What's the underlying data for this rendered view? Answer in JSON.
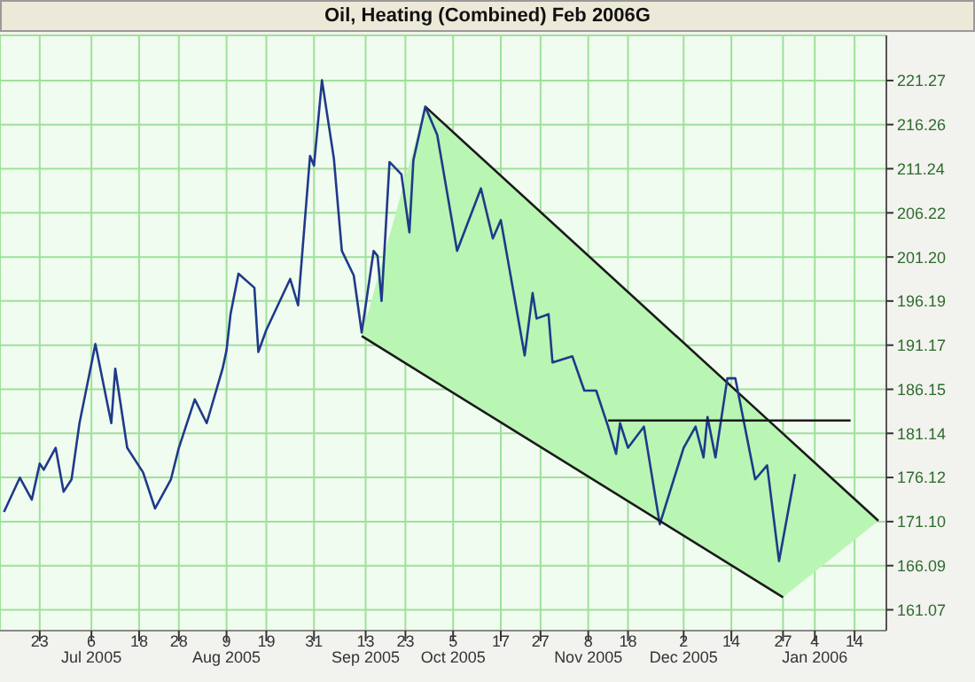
{
  "chart_data": {
    "type": "line",
    "title": "Oil, Heating (Combined) Feb 2006G",
    "xlim": [
      "2005-06-13",
      "2006-01-22"
    ],
    "xticks": [
      {
        "value": "2005-06-23",
        "label": "23"
      },
      {
        "value": "2005-07-06",
        "label": "6\nJul 2005"
      },
      {
        "value": "2005-07-18",
        "label": "18"
      },
      {
        "value": "2005-07-28",
        "label": "28"
      },
      {
        "value": "2005-08-09",
        "label": "9\nAug 2005"
      },
      {
        "value": "2005-08-19",
        "label": "19"
      },
      {
        "value": "2005-08-31",
        "label": "31"
      },
      {
        "value": "2005-09-13",
        "label": "13\nSep 2005"
      },
      {
        "value": "2005-09-23",
        "label": "23"
      },
      {
        "value": "2005-10-05",
        "label": "5\nOct 2005"
      },
      {
        "value": "2005-10-17",
        "label": "17"
      },
      {
        "value": "2005-10-27",
        "label": "27"
      },
      {
        "value": "2005-11-08",
        "label": "8\nNov 2005"
      },
      {
        "value": "2005-11-18",
        "label": "18"
      },
      {
        "value": "2005-12-02",
        "label": "2\nDec 2005"
      },
      {
        "value": "2005-12-14",
        "label": "14"
      },
      {
        "value": "2005-12-27",
        "label": "27"
      },
      {
        "value": "2006-01-04",
        "label": "4\nJan 2006"
      },
      {
        "value": "2006-01-14",
        "label": "14"
      }
    ],
    "ylim": [
      158.7,
      226.4
    ],
    "yticks": [
      161.07,
      166.09,
      {
        "value": 171.1,
        "label": "171.10"
      },
      176.12,
      181.14,
      186.15,
      191.17,
      196.19,
      {
        "value": 201.2,
        "label": "201.20"
      },
      206.22,
      211.24,
      216.26,
      221.27
    ],
    "grid": true,
    "series": [
      {
        "color": "#1a1a1a",
        "x": [
          "2005-09-12",
          "2005-09-28",
          "2005-12-27",
          "2006-01-20"
        ],
        "values": [
          null,
          218.3,
          181.1,
          171.2
        ],
        "lower": [
          192.2,
          187.7,
          162.5,
          171.2
        ],
        "upper": [
          192.2,
          218.3,
          181.1,
          171.2
        ]
      },
      {
        "color": "#1f3a8a",
        "x": [
          "2005-06-14",
          "2005-06-18",
          "2005-06-21",
          "2005-06-23",
          "2005-06-24",
          "2005-06-27",
          "2005-06-29",
          "2005-07-01",
          "2005-07-03",
          "2005-07-07",
          "2005-07-11",
          "2005-07-12",
          "2005-07-15",
          "2005-07-19",
          "2005-07-22",
          "2005-07-26",
          "2005-07-28",
          "2005-08-01",
          "2005-08-04",
          "2005-08-08",
          "2005-08-09",
          "2005-08-10",
          "2005-08-12",
          "2005-08-16",
          "2005-08-17",
          "2005-08-19",
          "2005-08-25",
          "2005-08-27",
          "2005-08-30",
          "2005-08-31",
          "2005-09-02",
          "2005-09-05",
          "2005-09-07",
          "2005-09-10",
          "2005-09-12",
          "2005-09-15",
          "2005-09-16",
          "2005-09-17",
          "2005-09-19",
          "2005-09-22",
          "2005-09-24",
          "2005-09-25",
          "2005-09-28",
          "2005-10-01",
          "2005-10-06",
          "2005-10-12",
          "2005-10-15",
          "2005-10-17",
          "2005-10-23",
          "2005-10-25",
          "2005-10-26",
          "2005-10-29",
          "2005-10-30",
          "2005-11-04",
          "2005-11-07",
          "2005-11-10",
          "2005-11-13",
          "2005-11-15",
          "2005-11-16",
          "2005-11-18",
          "2005-11-22",
          "2005-11-26",
          "2005-12-02",
          "2005-12-05",
          "2005-12-07",
          "2005-12-08",
          "2005-12-10",
          "2005-12-13",
          "2005-12-15",
          "2005-12-20",
          "2005-12-23",
          "2005-12-26",
          "2005-12-30"
        ],
        "values": [
          172.2,
          176.1,
          173.6,
          177.7,
          177.0,
          179.5,
          174.5,
          175.9,
          182.3,
          191.3,
          182.3,
          188.5,
          179.5,
          176.7,
          172.6,
          175.9,
          179.5,
          185.0,
          182.3,
          188.5,
          190.6,
          194.7,
          199.3,
          197.7,
          190.4,
          192.9,
          198.7,
          195.7,
          212.7,
          211.6,
          221.3,
          212.4,
          201.9,
          199.1,
          192.6,
          201.9,
          201.3,
          196.2,
          212.0,
          210.6,
          204.0,
          212.2,
          218.3,
          215.1,
          201.9,
          209.0,
          203.3,
          205.4,
          190.0,
          197.1,
          194.2,
          194.7,
          189.2,
          189.9,
          186.0,
          186.0,
          181.9,
          178.8,
          182.3,
          179.5,
          181.9,
          170.8,
          179.5,
          181.9,
          178.4,
          183.0,
          178.4,
          187.4,
          187.4,
          175.9,
          177.5,
          166.6,
          176.5
        ]
      },
      {
        "color": "#1a1a1a",
        "x": [
          "2005-09-12",
          "2005-12-27"
        ],
        "values": [
          192.2,
          162.5
        ]
      },
      {
        "color": "#1a1a1a",
        "x": [
          "2005-11-13",
          "2006-01-13"
        ],
        "values": [
          182.6,
          182.6
        ]
      }
    ]
  }
}
